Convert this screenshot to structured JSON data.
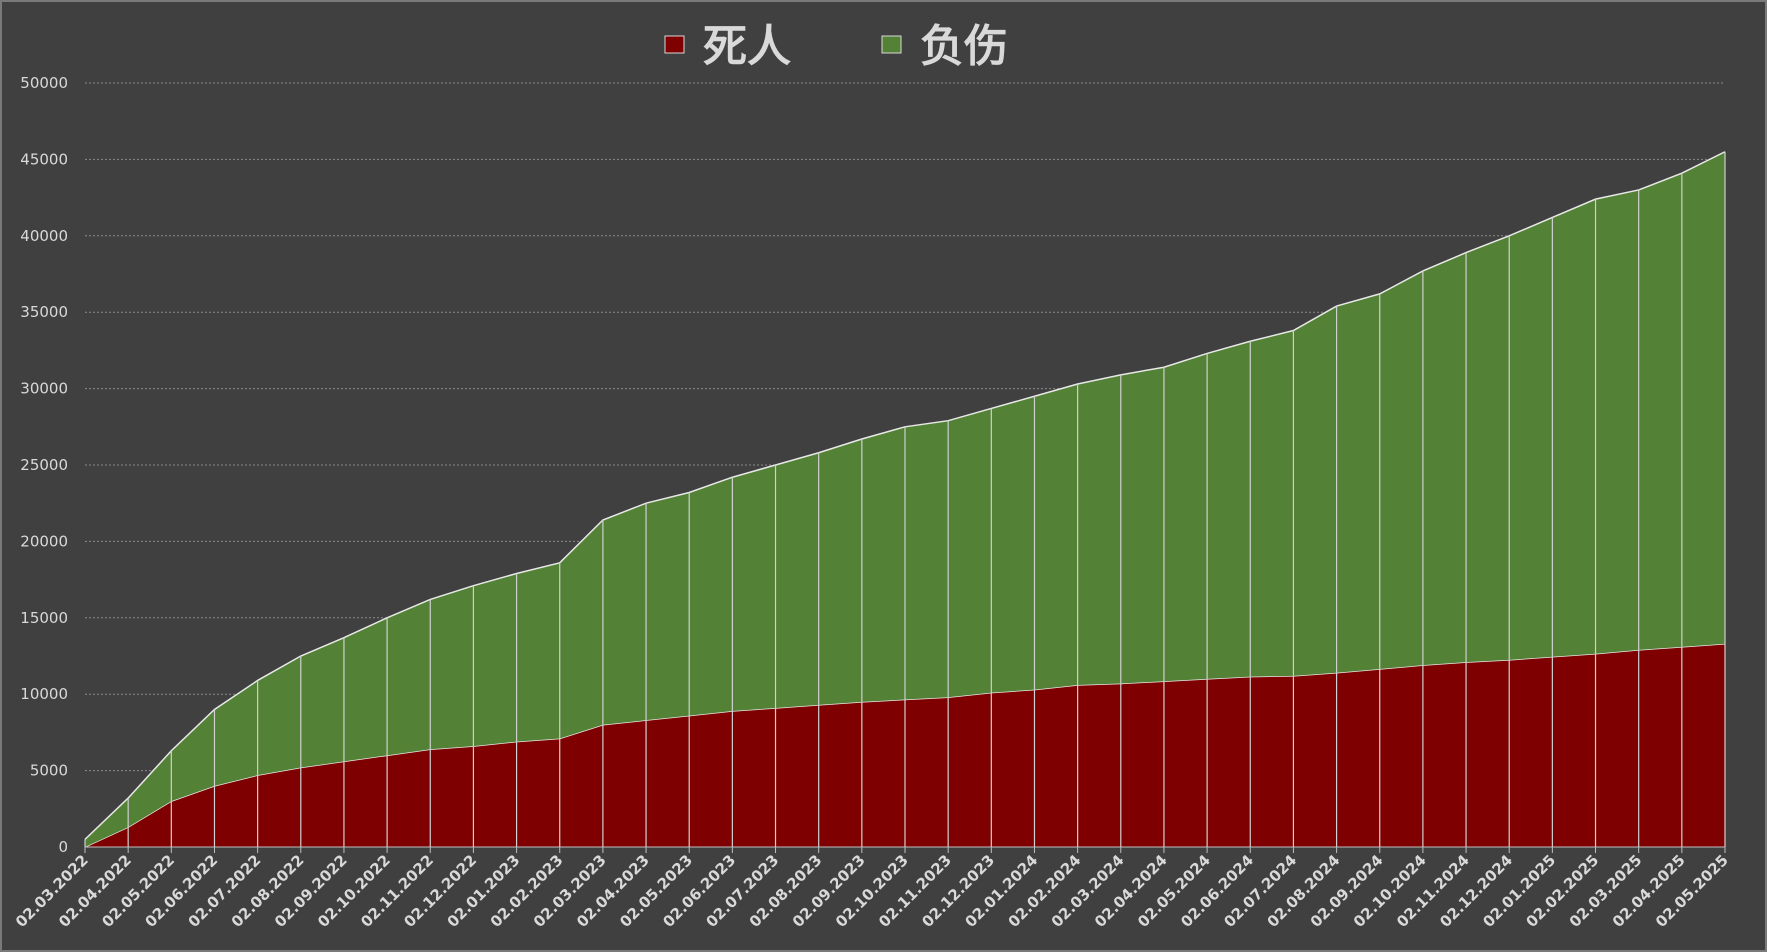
{
  "chart_data": {
    "type": "stacked-area",
    "categories": [
      "02.03.2022",
      "02.04.2022",
      "02.05.2022",
      "02.06.2022",
      "02.07.2022",
      "02.08.2022",
      "02.09.2022",
      "02.10.2022",
      "02.11.2022",
      "02.12.2022",
      "02.01.2023",
      "02.02.2023",
      "02.03.2023",
      "02.04.2023",
      "02.05.2023",
      "02.06.2023",
      "02.07.2023",
      "02.08.2023",
      "02.09.2023",
      "02.10.2023",
      "02.11.2023",
      "02.12.2023",
      "02.01.2024",
      "02.02.2024",
      "02.03.2024",
      "02.04.2024",
      "02.05.2024",
      "02.06.2024",
      "02.07.2024",
      "02.08.2024",
      "02.09.2024",
      "02.10.2024",
      "02.11.2024",
      "02.12.2024",
      "02.01.2025",
      "02.02.2025",
      "02.03.2025",
      "02.04.2025",
      "02.05.2025"
    ],
    "series": [
      {
        "name": "死人",
        "color": "#7f0000",
        "values": [
          0,
          1300,
          3000,
          4000,
          4700,
          5200,
          5600,
          6000,
          6400,
          6600,
          6900,
          7100,
          8000,
          8300,
          8600,
          8900,
          9100,
          9300,
          9500,
          9650,
          9800,
          10100,
          10300,
          10600,
          10700,
          10850,
          11000,
          11150,
          11200,
          11400,
          11650,
          11900,
          12100,
          12250,
          12450,
          12650,
          12900,
          13100,
          13300
        ]
      },
      {
        "name": "负伤",
        "color": "#538135",
        "values": [
          500,
          1900,
          3300,
          5000,
          6200,
          7300,
          8100,
          9000,
          9800,
          10500,
          11000,
          11500,
          13400,
          14200,
          14600,
          15300,
          15900,
          16500,
          17200,
          17850,
          18100,
          18600,
          19200,
          19700,
          20200,
          20550,
          21300,
          21950,
          22600,
          24000,
          24550,
          25800,
          26800,
          27750,
          28750,
          29750,
          30100,
          31000,
          32200
        ]
      }
    ],
    "ylim": [
      0,
      50000
    ],
    "yticks": [
      0,
      5000,
      10000,
      15000,
      20000,
      25000,
      30000,
      35000,
      40000,
      45000,
      50000
    ],
    "grid": true
  }
}
